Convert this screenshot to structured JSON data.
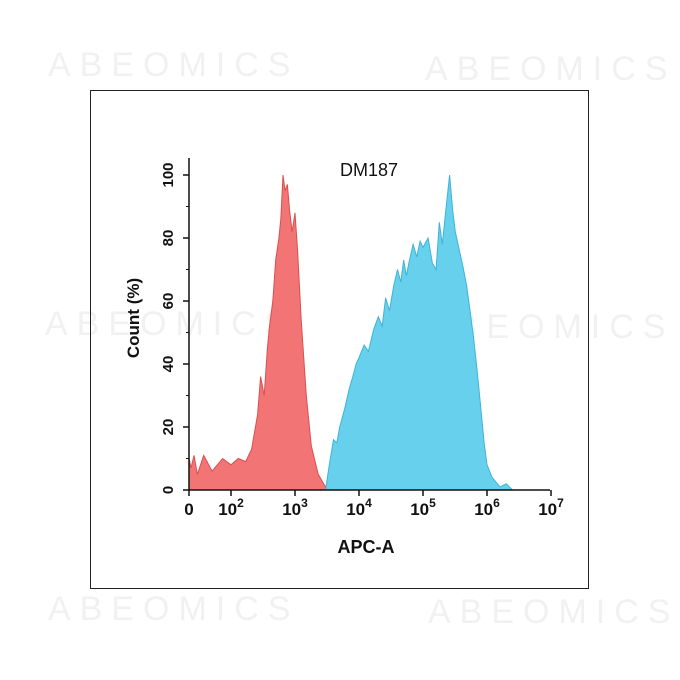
{
  "watermark_text": "ABEOMICS",
  "chart_data": {
    "type": "area",
    "title": "DM187",
    "xlabel": "APC-A",
    "ylabel": "Count (%)",
    "x_scale": "log (biexponential, includes 0)",
    "y_ticks": [
      "0",
      "20",
      "40",
      "60",
      "80",
      "100"
    ],
    "ylim": [
      0,
      100
    ],
    "x_ticks": [
      {
        "value": 0,
        "base": "0",
        "exp": ""
      },
      {
        "value": 100,
        "base": "10",
        "exp": "2"
      },
      {
        "value": 1000,
        "base": "10",
        "exp": "3"
      },
      {
        "value": 10000,
        "base": "10",
        "exp": "4"
      },
      {
        "value": 100000,
        "base": "10",
        "exp": "5"
      },
      {
        "value": 1000000,
        "base": "10",
        "exp": "6"
      },
      {
        "value": 10000000,
        "base": "10",
        "exp": "7"
      }
    ],
    "series": [
      {
        "color": "#f26d6d",
        "points": [
          [
            0,
            10
          ],
          [
            5,
            7
          ],
          [
            12,
            11
          ],
          [
            20,
            5
          ],
          [
            35,
            11
          ],
          [
            55,
            6
          ],
          [
            80,
            10
          ],
          [
            100,
            8
          ],
          [
            130,
            10
          ],
          [
            170,
            9
          ],
          [
            210,
            13
          ],
          [
            260,
            24
          ],
          [
            290,
            36
          ],
          [
            330,
            30
          ],
          [
            370,
            45
          ],
          [
            400,
            52
          ],
          [
            450,
            60
          ],
          [
            500,
            73
          ],
          [
            560,
            80
          ],
          [
            600,
            86
          ],
          [
            650,
            100
          ],
          [
            700,
            95
          ],
          [
            760,
            97
          ],
          [
            820,
            89
          ],
          [
            900,
            82
          ],
          [
            1000,
            88
          ],
          [
            1100,
            76
          ],
          [
            1250,
            54
          ],
          [
            1500,
            30
          ],
          [
            1800,
            14
          ],
          [
            2300,
            5
          ],
          [
            3000,
            1
          ],
          [
            3500,
            0
          ]
        ]
      },
      {
        "color": "#5fcdec",
        "points": [
          [
            3000,
            0
          ],
          [
            3500,
            9
          ],
          [
            4000,
            16
          ],
          [
            4500,
            15
          ],
          [
            5000,
            20
          ],
          [
            6000,
            26
          ],
          [
            7000,
            32
          ],
          [
            8000,
            36
          ],
          [
            9000,
            40
          ],
          [
            10000,
            42
          ],
          [
            12000,
            46
          ],
          [
            14000,
            44
          ],
          [
            17000,
            51
          ],
          [
            20000,
            55
          ],
          [
            23000,
            52
          ],
          [
            26000,
            61
          ],
          [
            30000,
            57
          ],
          [
            35000,
            65
          ],
          [
            40000,
            70
          ],
          [
            45000,
            66
          ],
          [
            50000,
            73
          ],
          [
            55000,
            68
          ],
          [
            60000,
            72
          ],
          [
            70000,
            78
          ],
          [
            80000,
            74
          ],
          [
            90000,
            79
          ],
          [
            100000,
            77
          ],
          [
            120000,
            80
          ],
          [
            140000,
            72
          ],
          [
            160000,
            70
          ],
          [
            180000,
            85
          ],
          [
            200000,
            78
          ],
          [
            230000,
            90
          ],
          [
            260000,
            100
          ],
          [
            290000,
            89
          ],
          [
            320000,
            82
          ],
          [
            370000,
            76
          ],
          [
            420000,
            71
          ],
          [
            480000,
            65
          ],
          [
            550000,
            56
          ],
          [
            620000,
            48
          ],
          [
            700000,
            38
          ],
          [
            800000,
            26
          ],
          [
            900000,
            15
          ],
          [
            1000000,
            8
          ],
          [
            1200000,
            4
          ],
          [
            1600000,
            1
          ],
          [
            2000000,
            2
          ],
          [
            2500000,
            0
          ]
        ]
      }
    ]
  }
}
